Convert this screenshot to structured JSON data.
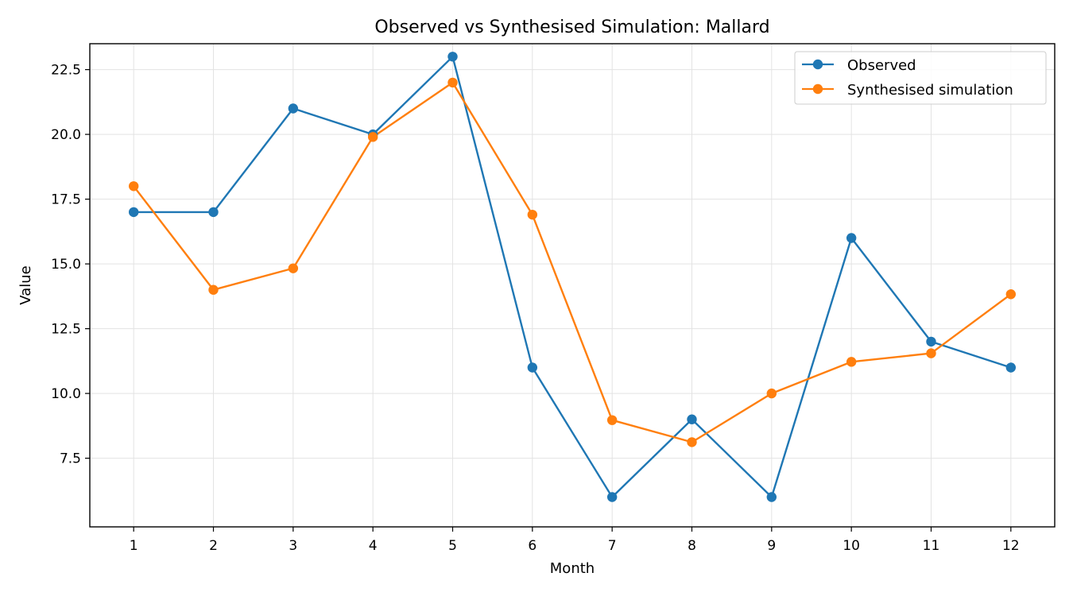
{
  "chart_data": {
    "type": "line",
    "title": "Observed vs Synthesised Simulation: Mallard",
    "xlabel": "Month",
    "ylabel": "Value",
    "x": [
      1,
      2,
      3,
      4,
      5,
      6,
      7,
      8,
      9,
      10,
      11,
      12
    ],
    "xticks": [
      "1",
      "2",
      "3",
      "4",
      "5",
      "6",
      "7",
      "8",
      "9",
      "10",
      "11",
      "12"
    ],
    "yticks": [
      "7.5",
      "10.0",
      "12.5",
      "15.0",
      "17.5",
      "20.0",
      "22.5"
    ],
    "ytick_values": [
      7.5,
      10.0,
      12.5,
      15.0,
      17.5,
      20.0,
      22.5
    ],
    "xlim": [
      0.45,
      12.55
    ],
    "ylim": [
      4.85,
      23.5
    ],
    "grid": true,
    "legend_position": "top-right",
    "series": [
      {
        "name": "Observed",
        "color": "#1f77b4",
        "values": [
          17,
          17,
          21,
          20,
          23,
          11,
          6,
          9,
          6,
          16,
          12,
          11
        ]
      },
      {
        "name": "Synthesised simulation",
        "color": "#ff7f0e",
        "values": [
          18,
          14,
          14.83,
          19.9,
          22,
          16.9,
          8.97,
          8.12,
          10,
          11.22,
          11.55,
          13.83
        ]
      }
    ]
  }
}
